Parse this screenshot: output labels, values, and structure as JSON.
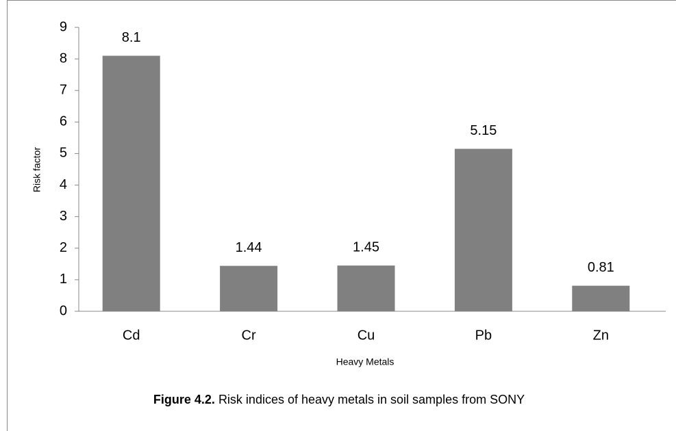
{
  "chart_data": {
    "type": "bar",
    "categories": [
      "Cd",
      "Cr",
      "Cu",
      "Pb",
      "Zn"
    ],
    "values": [
      8.1,
      1.44,
      1.45,
      5.15,
      0.81
    ],
    "color": "#808080",
    "ylim": [
      0,
      9
    ],
    "yticks": [
      0,
      1,
      2,
      3,
      4,
      5,
      6,
      7,
      8,
      9
    ],
    "grid": false,
    "xlabel": "Heavy Metals",
    "ylabel": "Risk factor",
    "caption_label": "Figure 4.2.",
    "caption_text": "Risk indices of heavy metals in soil samples from SONY"
  }
}
